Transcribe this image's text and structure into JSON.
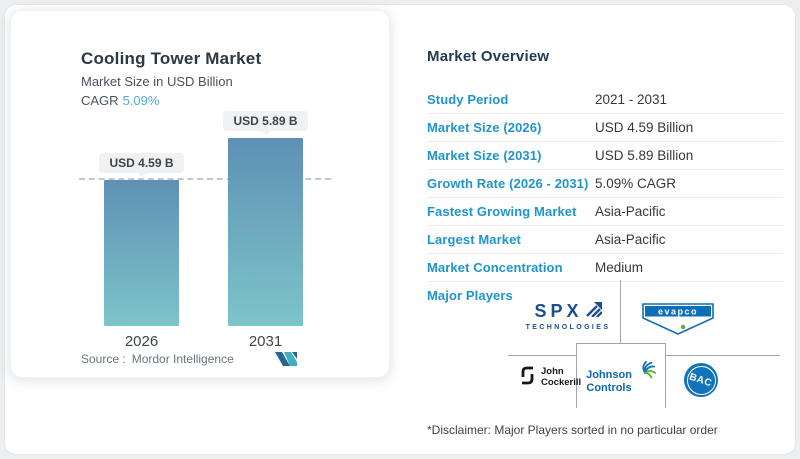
{
  "chart_card": {
    "title": "Cooling Tower Market",
    "subtitle": "Market Size in USD Billion",
    "cagr_label": "CAGR",
    "cagr_value": "5.09%",
    "source_label": "Source :",
    "source_value": "Mordor Intelligence"
  },
  "chart_data": {
    "type": "bar",
    "title": "Cooling Tower Market",
    "ylabel": "Market Size in USD Billion",
    "categories": [
      "2026",
      "2031"
    ],
    "values": [
      4.59,
      5.89
    ],
    "value_labels": [
      "USD 4.59 B",
      "USD 5.89 B"
    ],
    "reference_line": 4.59,
    "ylim": [
      0,
      6.3
    ],
    "grid": false,
    "bar_gradient_top": "#5e91b5",
    "bar_gradient_bottom": "#7dc4c9"
  },
  "overview": {
    "heading": "Market Overview",
    "rows": [
      {
        "label": "Study Period",
        "value": "2021 - 2031"
      },
      {
        "label": "Market Size (2026)",
        "value": "USD 4.59 Billion"
      },
      {
        "label": "Market Size (2031)",
        "value": "USD 5.89 Billion"
      },
      {
        "label": "Growth Rate (2026 - 2031)",
        "value": "5.09% CAGR"
      },
      {
        "label": "Fastest Growing Market",
        "value": "Asia-Pacific"
      },
      {
        "label": "Largest Market",
        "value": "Asia-Pacific"
      },
      {
        "label": "Market Concentration",
        "value": "Medium"
      },
      {
        "label": "Major Players",
        "value": ""
      }
    ],
    "disclaimer": "*Disclaimer: Major Players sorted in no particular order"
  },
  "players": {
    "names": [
      "SPX Technologies",
      "Evapco",
      "John Cockerill",
      "Johnson Controls",
      "BAC"
    ],
    "spx_word": "SPX",
    "spx_sub": "TECHNOLOGIES",
    "evapco_word": "evapco",
    "jcock_line1": "John",
    "jcock_line2": "Cockerill",
    "johnson_line1": "Johnson",
    "johnson_line2": "Controls",
    "bac_word": "BAC"
  },
  "colors": {
    "accent_blue": "#2195cb",
    "cagr_blue": "#57a8cf",
    "heading_navy": "#233c52",
    "bar_top": "#5e91b5",
    "bar_bottom": "#7dc4c9",
    "spx_blue": "#1c4e92",
    "evapco_blue": "#0e6fb7",
    "johnson_blue": "#0c68b0",
    "bac_blue": "#1173ba",
    "leaf_green": "#5cb531"
  }
}
